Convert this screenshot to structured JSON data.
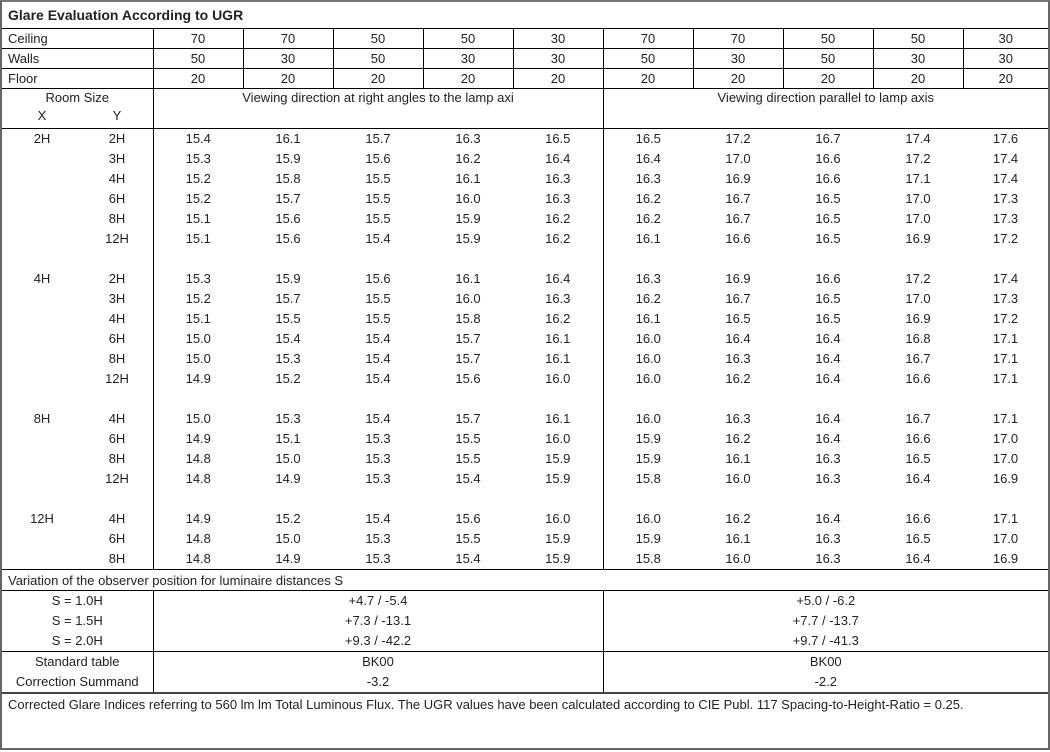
{
  "title": "Glare Evaluation According to UGR",
  "reflectances": [
    {
      "label": "Ceiling",
      "values": [
        "70",
        "70",
        "50",
        "50",
        "30",
        "70",
        "70",
        "50",
        "50",
        "30"
      ]
    },
    {
      "label": "Walls",
      "values": [
        "50",
        "30",
        "50",
        "30",
        "30",
        "50",
        "30",
        "50",
        "30",
        "30"
      ]
    },
    {
      "label": "Floor",
      "values": [
        "20",
        "20",
        "20",
        "20",
        "20",
        "20",
        "20",
        "20",
        "20",
        "20"
      ]
    }
  ],
  "header": {
    "room_size": "Room Size",
    "x": "X",
    "y": "Y",
    "direction_right_angles": "Viewing direction at right angles to the lamp axi",
    "direction_parallel": "Viewing direction parallel to lamp axis"
  },
  "groups": [
    {
      "x": "2H",
      "rows": [
        {
          "y": "2H",
          "values": [
            "15.4",
            "16.1",
            "15.7",
            "16.3",
            "16.5",
            "16.5",
            "17.2",
            "16.7",
            "17.4",
            "17.6"
          ]
        },
        {
          "y": "3H",
          "values": [
            "15.3",
            "15.9",
            "15.6",
            "16.2",
            "16.4",
            "16.4",
            "17.0",
            "16.6",
            "17.2",
            "17.4"
          ]
        },
        {
          "y": "4H",
          "values": [
            "15.2",
            "15.8",
            "15.5",
            "16.1",
            "16.3",
            "16.3",
            "16.9",
            "16.6",
            "17.1",
            "17.4"
          ]
        },
        {
          "y": "6H",
          "values": [
            "15.2",
            "15.7",
            "15.5",
            "16.0",
            "16.3",
            "16.2",
            "16.7",
            "16.5",
            "17.0",
            "17.3"
          ]
        },
        {
          "y": "8H",
          "values": [
            "15.1",
            "15.6",
            "15.5",
            "15.9",
            "16.2",
            "16.2",
            "16.7",
            "16.5",
            "17.0",
            "17.3"
          ]
        },
        {
          "y": "12H",
          "values": [
            "15.1",
            "15.6",
            "15.4",
            "15.9",
            "16.2",
            "16.1",
            "16.6",
            "16.5",
            "16.9",
            "17.2"
          ]
        }
      ]
    },
    {
      "x": "4H",
      "rows": [
        {
          "y": "2H",
          "values": [
            "15.3",
            "15.9",
            "15.6",
            "16.1",
            "16.4",
            "16.3",
            "16.9",
            "16.6",
            "17.2",
            "17.4"
          ]
        },
        {
          "y": "3H",
          "values": [
            "15.2",
            "15.7",
            "15.5",
            "16.0",
            "16.3",
            "16.2",
            "16.7",
            "16.5",
            "17.0",
            "17.3"
          ]
        },
        {
          "y": "4H",
          "values": [
            "15.1",
            "15.5",
            "15.5",
            "15.8",
            "16.2",
            "16.1",
            "16.5",
            "16.5",
            "16.9",
            "17.2"
          ]
        },
        {
          "y": "6H",
          "values": [
            "15.0",
            "15.4",
            "15.4",
            "15.7",
            "16.1",
            "16.0",
            "16.4",
            "16.4",
            "16.8",
            "17.1"
          ]
        },
        {
          "y": "8H",
          "values": [
            "15.0",
            "15.3",
            "15.4",
            "15.7",
            "16.1",
            "16.0",
            "16.3",
            "16.4",
            "16.7",
            "17.1"
          ]
        },
        {
          "y": "12H",
          "values": [
            "14.9",
            "15.2",
            "15.4",
            "15.6",
            "16.0",
            "16.0",
            "16.2",
            "16.4",
            "16.6",
            "17.1"
          ]
        }
      ]
    },
    {
      "x": "8H",
      "rows": [
        {
          "y": "4H",
          "values": [
            "15.0",
            "15.3",
            "15.4",
            "15.7",
            "16.1",
            "16.0",
            "16.3",
            "16.4",
            "16.7",
            "17.1"
          ]
        },
        {
          "y": "6H",
          "values": [
            "14.9",
            "15.1",
            "15.3",
            "15.5",
            "16.0",
            "15.9",
            "16.2",
            "16.4",
            "16.6",
            "17.0"
          ]
        },
        {
          "y": "8H",
          "values": [
            "14.8",
            "15.0",
            "15.3",
            "15.5",
            "15.9",
            "15.9",
            "16.1",
            "16.3",
            "16.5",
            "17.0"
          ]
        },
        {
          "y": "12H",
          "values": [
            "14.8",
            "14.9",
            "15.3",
            "15.4",
            "15.9",
            "15.8",
            "16.0",
            "16.3",
            "16.4",
            "16.9"
          ]
        }
      ]
    },
    {
      "x": "12H",
      "rows": [
        {
          "y": "4H",
          "values": [
            "14.9",
            "15.2",
            "15.4",
            "15.6",
            "16.0",
            "16.0",
            "16.2",
            "16.4",
            "16.6",
            "17.1"
          ]
        },
        {
          "y": "6H",
          "values": [
            "14.8",
            "15.0",
            "15.3",
            "15.5",
            "15.9",
            "15.9",
            "16.1",
            "16.3",
            "16.5",
            "17.0"
          ]
        },
        {
          "y": "8H",
          "values": [
            "14.8",
            "14.9",
            "15.3",
            "15.4",
            "15.9",
            "15.8",
            "16.0",
            "16.3",
            "16.4",
            "16.9"
          ]
        }
      ]
    }
  ],
  "variation": {
    "title": "Variation of the observer position for luminaire distances S",
    "rows": [
      {
        "label": "S = 1.0H",
        "right_angles": "+4.7 / -5.4",
        "parallel": "+5.0 / -6.2"
      },
      {
        "label": "S = 1.5H",
        "right_angles": "+7.3 / -13.1",
        "parallel": "+7.7 / -13.7"
      },
      {
        "label": "S = 2.0H",
        "right_angles": "+9.3 / -42.2",
        "parallel": "+9.7 / -41.3"
      }
    ]
  },
  "standard": [
    {
      "label": "Standard table",
      "right_angles": "BK00",
      "parallel": "BK00"
    },
    {
      "label": "Correction Summand",
      "right_angles": "-3.2",
      "parallel": "-2.2"
    }
  ],
  "footer": "Corrected Glare Indices referring to 560 lm lm Total Luminous Flux. The UGR values have been calculated according to CIE Publ. 117    Spacing-to-Height-Ratio = 0.25."
}
